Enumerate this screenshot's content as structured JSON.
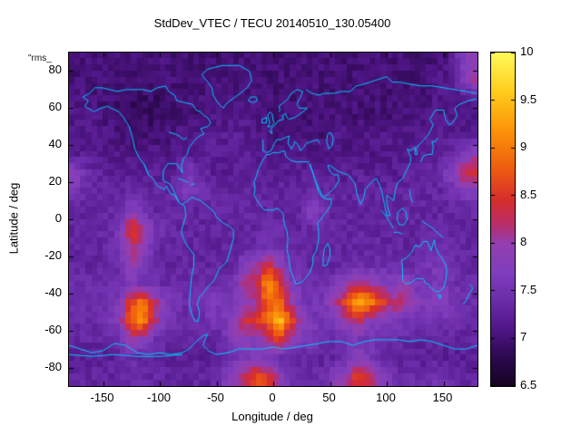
{
  "title": "StdDev_VTEC / TECU 20140510_130.05400",
  "corner_label": "\"rms_",
  "axes": {
    "xlabel": "Longitude / deg",
    "ylabel": "Latitude / deg",
    "x_ticks": [
      -150,
      -100,
      -50,
      0,
      50,
      100,
      150
    ],
    "y_ticks": [
      -80,
      -60,
      -40,
      -20,
      0,
      20,
      40,
      60,
      80
    ],
    "xlim": [
      -180,
      180
    ],
    "ylim": [
      -90,
      90
    ]
  },
  "colorbar": {
    "min": 6.5,
    "max": 10,
    "ticks": [
      10,
      9.5,
      9,
      8.5,
      8,
      7.5,
      7,
      6.5
    ],
    "palette": [
      [
        6.5,
        "#140422"
      ],
      [
        6.8,
        "#2d0850"
      ],
      [
        7.1,
        "#501687"
      ],
      [
        7.4,
        "#6c2daa"
      ],
      [
        7.7,
        "#803ebc"
      ],
      [
        8.0,
        "#943eaf"
      ],
      [
        8.2,
        "#b92d69"
      ],
      [
        8.45,
        "#d72d2d"
      ],
      [
        8.8,
        "#ee5f0f"
      ],
      [
        9.2,
        "#fc9608"
      ],
      [
        9.6,
        "#ffcd1e"
      ],
      [
        10,
        "#fffa5a"
      ]
    ]
  },
  "map": {
    "coastline_color": "#00c8ff"
  },
  "chart_data": {
    "type": "heatmap",
    "title": "StdDev_VTEC / TECU 20140510_130.05400",
    "xlabel": "Longitude / deg",
    "ylabel": "Latitude / deg",
    "units": "TECU",
    "colorbar_range": [
      6.5,
      10
    ],
    "lat_centers_start": 85,
    "lon_centers_start": -175,
    "cell_size_deg": 10,
    "values": [
      [
        7.0,
        7.0,
        7.0,
        7.0,
        7.0,
        7.0,
        7.0,
        7.0,
        7.0,
        7.0,
        7.0,
        7.0,
        7.0,
        7.0,
        7.0,
        7.0,
        7.0,
        7.0,
        7.0,
        7.0,
        7.0,
        7.0,
        7.0,
        7.0,
        7.0,
        7.0,
        7.0,
        7.0,
        7.0,
        7.0,
        7.0,
        7.0,
        7.0,
        7.0,
        7.6,
        7.9
      ],
      [
        7.0,
        7.0,
        7.0,
        7.0,
        7.0,
        7.0,
        7.0,
        7.0,
        7.0,
        7.0,
        7.0,
        7.0,
        7.0,
        7.0,
        7.0,
        7.0,
        7.0,
        7.0,
        7.0,
        7.0,
        7.0,
        7.0,
        7.0,
        7.0,
        7.0,
        7.0,
        7.0,
        7.0,
        7.0,
        7.0,
        7.0,
        7.0,
        7.1,
        7.2,
        7.5,
        8.0
      ],
      [
        7.1,
        7.1,
        7.0,
        7.0,
        6.9,
        6.9,
        6.9,
        6.9,
        6.9,
        7.0,
        7.0,
        7.0,
        7.1,
        7.1,
        7.1,
        7.1,
        7.0,
        7.0,
        7.0,
        7.0,
        7.0,
        7.0,
        7.0,
        7.0,
        7.0,
        7.0,
        7.0,
        7.0,
        7.0,
        7.0,
        7.0,
        7.0,
        7.1,
        7.1,
        7.1,
        7.2
      ],
      [
        7.1,
        7.1,
        7.1,
        7.0,
        7.0,
        6.9,
        6.9,
        6.9,
        7.0,
        7.0,
        7.0,
        7.0,
        7.1,
        7.1,
        7.1,
        7.1,
        7.1,
        7.0,
        7.0,
        7.0,
        7.0,
        7.0,
        7.0,
        7.0,
        7.0,
        7.0,
        7.0,
        7.0,
        7.0,
        7.0,
        7.1,
        7.1,
        7.1,
        7.1,
        7.1,
        7.1
      ],
      [
        7.2,
        7.1,
        7.1,
        7.1,
        7.0,
        7.0,
        7.0,
        7.0,
        7.0,
        7.1,
        7.1,
        7.1,
        7.2,
        7.2,
        7.2,
        7.2,
        7.1,
        7.1,
        7.0,
        7.0,
        7.0,
        7.0,
        7.0,
        7.1,
        7.1,
        7.1,
        7.1,
        7.1,
        7.1,
        7.1,
        7.1,
        7.1,
        7.2,
        7.2,
        7.2,
        7.2
      ],
      [
        7.2,
        7.2,
        7.2,
        7.1,
        7.1,
        7.1,
        7.1,
        7.1,
        7.1,
        7.1,
        7.2,
        7.2,
        7.2,
        7.2,
        7.2,
        7.2,
        7.2,
        7.1,
        7.1,
        7.1,
        7.1,
        7.1,
        7.1,
        7.1,
        7.1,
        7.1,
        7.1,
        7.1,
        7.2,
        7.2,
        7.2,
        7.2,
        7.2,
        7.3,
        7.5,
        7.8
      ],
      [
        7.9,
        7.4,
        7.3,
        7.2,
        7.2,
        7.2,
        7.2,
        7.2,
        7.2,
        7.2,
        7.6,
        7.4,
        7.2,
        7.2,
        7.2,
        7.2,
        7.2,
        7.2,
        7.2,
        7.2,
        7.2,
        7.2,
        7.2,
        7.2,
        7.2,
        7.2,
        7.2,
        7.2,
        7.2,
        7.2,
        7.3,
        7.3,
        7.4,
        7.6,
        8.2,
        8.5
      ],
      [
        7.6,
        7.4,
        7.3,
        7.3,
        7.3,
        7.3,
        7.3,
        7.3,
        7.3,
        7.4,
        7.7,
        7.6,
        7.4,
        7.3,
        7.3,
        7.3,
        7.3,
        7.3,
        7.3,
        7.3,
        7.3,
        7.4,
        7.3,
        7.3,
        7.3,
        7.3,
        7.3,
        7.3,
        7.3,
        7.3,
        7.3,
        7.3,
        7.3,
        7.4,
        7.6,
        7.7
      ],
      [
        7.3,
        7.3,
        7.3,
        7.3,
        7.4,
        7.8,
        7.5,
        7.3,
        7.3,
        7.3,
        7.3,
        7.3,
        7.3,
        7.3,
        7.3,
        7.3,
        7.3,
        7.3,
        7.3,
        7.3,
        7.3,
        7.9,
        7.4,
        7.3,
        7.3,
        7.3,
        7.3,
        7.3,
        7.3,
        7.3,
        7.3,
        7.3,
        7.3,
        7.3,
        7.3,
        7.4
      ],
      [
        7.3,
        7.3,
        7.3,
        7.4,
        7.6,
        8.6,
        8.2,
        7.6,
        7.4,
        7.3,
        7.3,
        7.3,
        7.3,
        7.3,
        7.3,
        7.3,
        7.3,
        7.4,
        7.4,
        7.3,
        7.3,
        7.4,
        7.3,
        7.3,
        7.3,
        7.3,
        7.3,
        7.3,
        7.3,
        7.3,
        7.3,
        7.3,
        7.3,
        7.3,
        7.3,
        7.3
      ],
      [
        7.3,
        7.3,
        7.3,
        7.4,
        7.5,
        8.3,
        7.9,
        7.5,
        7.3,
        7.3,
        7.3,
        7.3,
        7.3,
        7.3,
        7.3,
        7.3,
        7.4,
        7.5,
        7.5,
        7.4,
        7.3,
        7.3,
        7.3,
        7.3,
        7.3,
        7.3,
        7.3,
        7.3,
        7.3,
        7.3,
        7.3,
        7.4,
        7.4,
        7.4,
        7.3,
        7.3
      ],
      [
        7.3,
        7.3,
        7.3,
        7.3,
        7.4,
        8.0,
        7.7,
        7.4,
        7.3,
        7.3,
        7.3,
        7.3,
        7.3,
        7.3,
        7.3,
        7.8,
        7.9,
        8.4,
        8.0,
        7.5,
        7.4,
        7.3,
        7.3,
        7.3,
        7.4,
        7.4,
        7.4,
        7.4,
        7.4,
        7.4,
        7.4,
        7.5,
        7.6,
        7.5,
        7.4,
        7.3
      ],
      [
        7.4,
        7.4,
        7.4,
        7.4,
        7.4,
        7.6,
        7.5,
        7.4,
        7.4,
        7.4,
        7.4,
        7.4,
        7.4,
        7.4,
        7.5,
        8.2,
        8.2,
        9.2,
        8.6,
        7.8,
        7.5,
        7.4,
        7.4,
        7.6,
        7.9,
        8.2,
        8.0,
        7.8,
        7.7,
        8.0,
        7.6,
        7.5,
        7.7,
        7.5,
        7.4,
        7.4
      ],
      [
        7.4,
        7.4,
        7.4,
        7.5,
        7.7,
        8.6,
        9.0,
        8.3,
        7.7,
        7.5,
        7.4,
        7.4,
        7.7,
        7.5,
        7.6,
        7.9,
        8.0,
        8.8,
        9.0,
        8.1,
        7.6,
        7.5,
        7.6,
        8.0,
        8.7,
        9.4,
        9.1,
        8.6,
        8.3,
        8.2,
        7.8,
        7.7,
        7.8,
        7.6,
        7.5,
        7.4
      ],
      [
        7.4,
        7.4,
        7.4,
        7.5,
        7.8,
        8.8,
        9.3,
        8.2,
        7.6,
        7.4,
        7.4,
        7.4,
        7.5,
        7.5,
        7.9,
        8.4,
        8.5,
        8.8,
        9.6,
        8.8,
        7.9,
        7.6,
        7.5,
        7.6,
        8.0,
        8.3,
        7.9,
        7.7,
        7.6,
        7.5,
        7.5,
        7.5,
        7.5,
        7.5,
        7.4,
        7.4
      ],
      [
        7.3,
        7.3,
        7.3,
        7.4,
        7.5,
        8.0,
        7.8,
        7.5,
        7.4,
        7.3,
        7.3,
        7.3,
        7.3,
        7.4,
        7.9,
        7.9,
        7.7,
        8.0,
        8.6,
        8.0,
        7.6,
        7.6,
        7.4,
        7.4,
        7.5,
        7.6,
        7.5,
        7.4,
        7.4,
        7.4,
        7.3,
        7.3,
        7.4,
        7.3,
        7.3,
        7.3
      ],
      [
        7.2,
        7.2,
        7.2,
        7.2,
        7.3,
        7.4,
        7.3,
        7.3,
        7.2,
        7.2,
        7.2,
        7.2,
        7.2,
        7.3,
        7.4,
        7.6,
        7.8,
        7.5,
        7.4,
        7.3,
        7.3,
        7.3,
        7.3,
        7.3,
        7.4,
        7.8,
        7.6,
        7.4,
        7.3,
        7.2,
        7.2,
        7.2,
        7.2,
        7.2,
        7.2,
        7.2
      ],
      [
        7.3,
        7.3,
        7.3,
        7.3,
        7.3,
        7.4,
        7.4,
        7.3,
        7.3,
        7.3,
        7.3,
        7.3,
        7.3,
        7.5,
        7.9,
        8.3,
        8.7,
        8.5,
        7.9,
        7.5,
        7.4,
        7.4,
        7.4,
        7.9,
        8.0,
        8.6,
        8.4,
        7.8,
        7.5,
        7.4,
        7.4,
        7.4,
        7.5,
        7.4,
        7.3,
        7.3
      ]
    ]
  }
}
